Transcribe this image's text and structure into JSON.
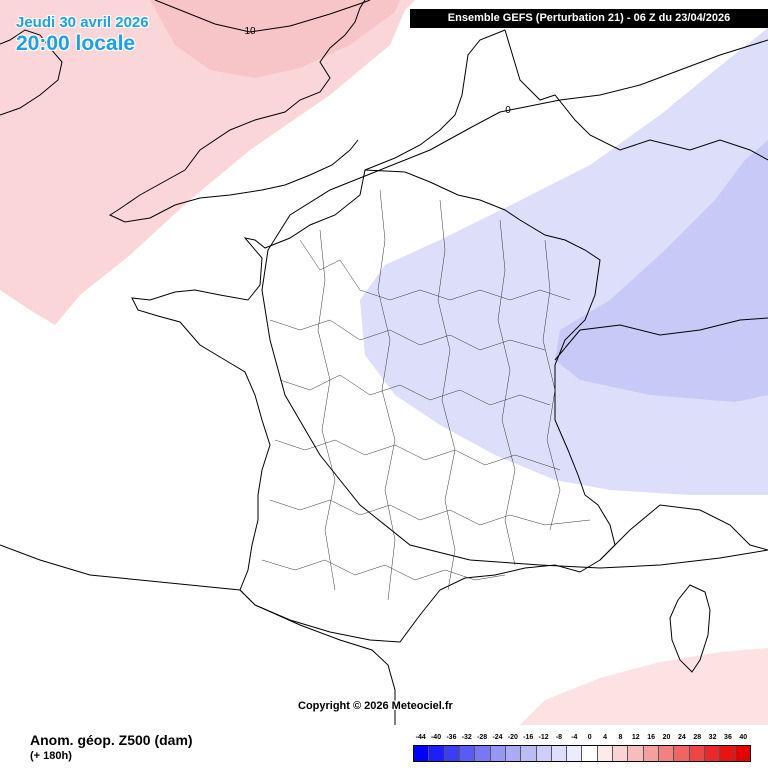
{
  "header": {
    "date_line": "Jeudi 30 avril 2026",
    "time_line": "20:00 locale",
    "run_info": "Ensemble GEFS  (Perturbation 21)  -  06 Z du 23/04/2026"
  },
  "map": {
    "contour_labels": [
      "10",
      "0"
    ],
    "copyright": "Copyright © 2026 Meteociel.fr"
  },
  "footer": {
    "field_title": "Anom. géop. Z500 (dam)",
    "lead_time": "(+ 180h)"
  },
  "legend": {
    "ticks": [
      "-44",
      "-40",
      "-36",
      "-32",
      "-28",
      "-24",
      "-20",
      "-16",
      "-12",
      "-8",
      "-4",
      "0",
      "4",
      "8",
      "12",
      "16",
      "20",
      "24",
      "28",
      "32",
      "36",
      "40"
    ],
    "colors": [
      "#0000ff",
      "#1e1efc",
      "#3c3cf7",
      "#5a5af5",
      "#7878f5",
      "#9696f5",
      "#aaaaf5",
      "#bcbcf5",
      "#cdcdf7",
      "#dedefa",
      "#ececfc",
      "#ffffff",
      "#fdeaea",
      "#fad4d4",
      "#f7bcbc",
      "#f5a0a0",
      "#f28282",
      "#f06464",
      "#ee4646",
      "#eb2828",
      "#e81414",
      "#e60000"
    ]
  },
  "colors": {
    "date_text": "#19a0f0",
    "positive_anomaly": "#fbd6d8",
    "negative_anomaly": "#d6d8f8",
    "strong_negative_anomaly": "#c3c5f5"
  }
}
